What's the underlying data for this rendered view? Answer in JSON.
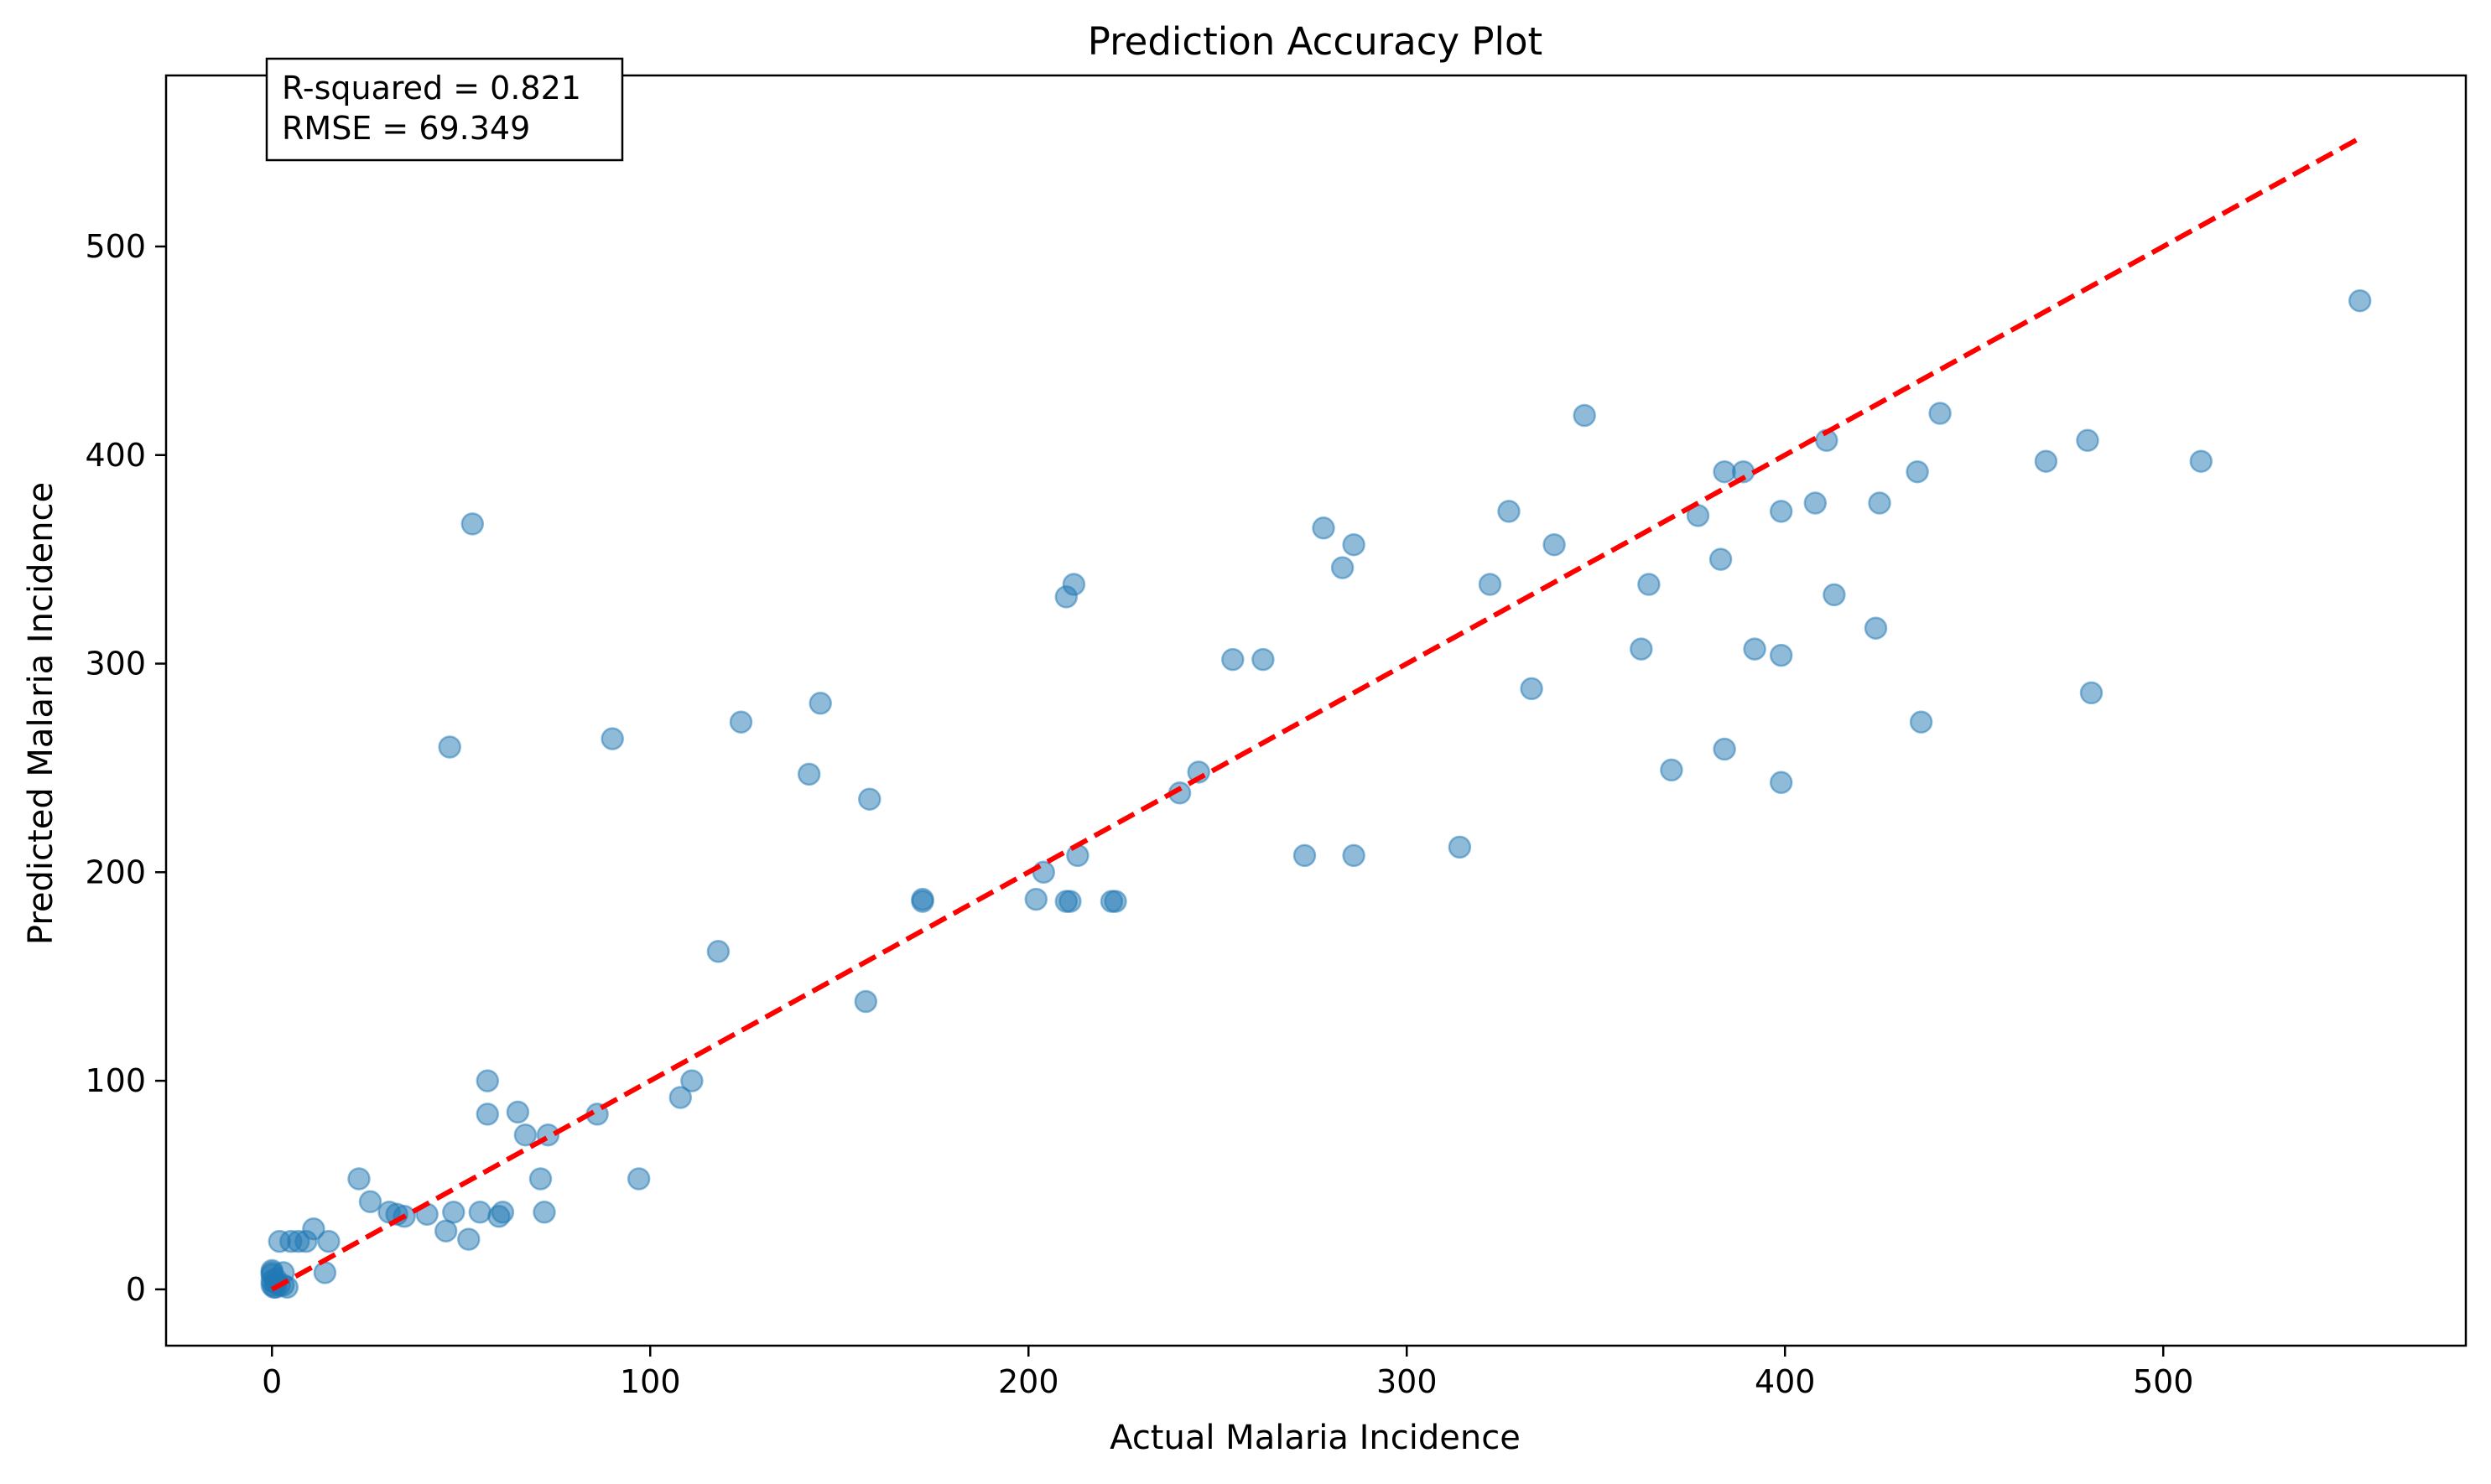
{
  "chart_data": {
    "type": "scatter",
    "title": "Prediction Accuracy Plot",
    "xlabel": "Actual Malaria Incidence",
    "ylabel": "Predicted Malaria Incidence",
    "xlim": [
      -28,
      580
    ],
    "ylim": [
      -27,
      582
    ],
    "xticks": [
      0,
      100,
      200,
      300,
      400,
      500
    ],
    "yticks": [
      0,
      100,
      200,
      300,
      400,
      500
    ],
    "grid": false,
    "annotation": {
      "lines": [
        "R-squared = 0.821",
        "RMSE = 69.349"
      ],
      "placement": "top-left"
    },
    "reference_line": {
      "from": [
        0,
        0
      ],
      "to": [
        552,
        552
      ],
      "style": "dashed",
      "color": "#ff0000"
    },
    "point_color": "#1f77b4",
    "series": [
      {
        "points": [
          [
            0,
            8
          ],
          [
            0,
            4
          ],
          [
            0,
            2
          ],
          [
            0,
            9
          ],
          [
            0,
            7
          ],
          [
            0.5,
            1
          ],
          [
            1,
            3
          ],
          [
            1,
            5
          ],
          [
            1,
            1
          ],
          [
            2,
            23
          ],
          [
            2,
            2
          ],
          [
            3,
            8
          ],
          [
            3,
            2
          ],
          [
            4,
            1
          ],
          [
            5,
            23
          ],
          [
            7,
            23
          ],
          [
            9,
            23
          ],
          [
            11,
            29
          ],
          [
            14,
            8
          ],
          [
            15,
            23
          ],
          [
            23,
            53
          ],
          [
            26,
            42
          ],
          [
            31,
            37
          ],
          [
            33,
            36
          ],
          [
            35,
            35
          ],
          [
            41,
            36
          ],
          [
            46,
            28
          ],
          [
            48,
            37
          ],
          [
            52,
            24
          ],
          [
            55,
            37
          ],
          [
            57,
            100
          ],
          [
            57,
            84
          ],
          [
            60,
            35
          ],
          [
            61,
            37
          ],
          [
            65,
            85
          ],
          [
            67,
            74
          ],
          [
            71,
            53
          ],
          [
            72,
            37
          ],
          [
            73,
            74
          ],
          [
            86,
            84
          ],
          [
            97,
            53
          ],
          [
            108,
            92
          ],
          [
            111,
            100
          ],
          [
            118,
            162
          ],
          [
            124,
            272
          ],
          [
            142,
            247
          ],
          [
            145,
            281
          ],
          [
            157,
            138
          ],
          [
            158,
            235
          ],
          [
            172,
            187
          ],
          [
            172,
            186
          ],
          [
            202,
            187
          ],
          [
            204,
            200
          ],
          [
            210,
            332
          ],
          [
            210,
            186
          ],
          [
            211,
            186
          ],
          [
            212,
            338
          ],
          [
            213,
            208
          ],
          [
            222,
            186
          ],
          [
            223,
            186
          ],
          [
            240,
            238
          ],
          [
            245,
            248
          ],
          [
            254,
            302
          ],
          [
            262,
            302
          ],
          [
            273,
            208
          ],
          [
            278,
            365
          ],
          [
            283,
            346
          ],
          [
            286,
            357
          ],
          [
            286,
            208
          ],
          [
            314,
            212
          ],
          [
            322,
            338
          ],
          [
            327,
            373
          ],
          [
            333,
            288
          ],
          [
            339,
            357
          ],
          [
            347,
            419
          ],
          [
            362,
            307
          ],
          [
            364,
            338
          ],
          [
            370,
            249
          ],
          [
            377,
            371
          ],
          [
            383,
            350
          ],
          [
            384,
            392
          ],
          [
            384,
            259
          ],
          [
            389,
            392
          ],
          [
            392,
            307
          ],
          [
            399,
            373
          ],
          [
            399,
            304
          ],
          [
            399,
            243
          ],
          [
            408,
            377
          ],
          [
            411,
            407
          ],
          [
            413,
            333
          ],
          [
            424,
            317
          ],
          [
            425,
            377
          ],
          [
            435,
            392
          ],
          [
            436,
            272
          ],
          [
            441,
            420
          ],
          [
            469,
            397
          ],
          [
            480,
            407
          ],
          [
            481,
            286
          ],
          [
            510,
            397
          ],
          [
            552,
            474
          ],
          [
            53,
            367
          ],
          [
            47,
            260
          ],
          [
            90,
            264
          ]
        ]
      }
    ]
  }
}
